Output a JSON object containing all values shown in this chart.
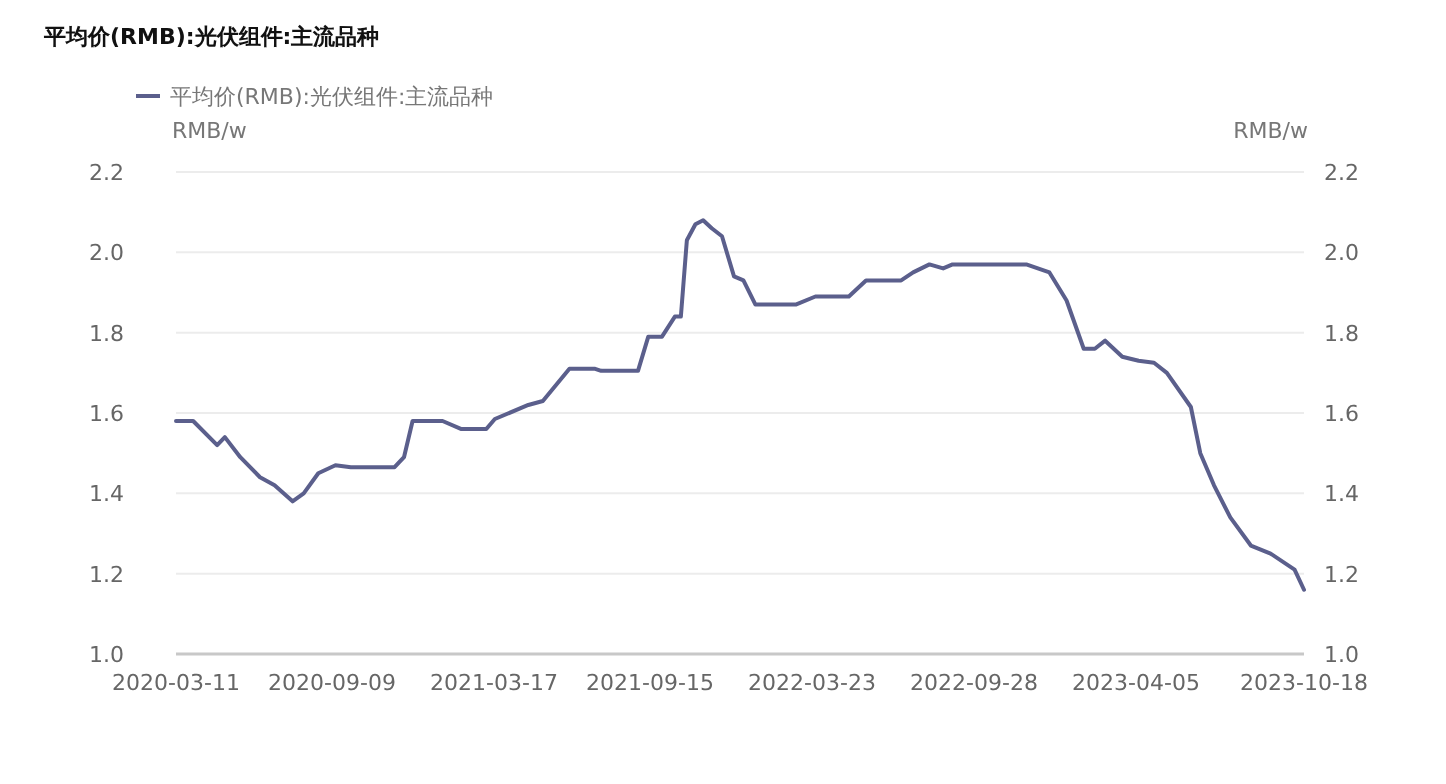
{
  "chart_data": {
    "type": "line",
    "title": "平均价(RMB):光伏组件:主流品种",
    "ylabel": "RMB/w",
    "y2label": "RMB/w",
    "x": [
      "2020-03-11",
      "2020-03-31",
      "2020-04-28",
      "2020-05-07",
      "2020-05-25",
      "2020-06-17",
      "2020-07-04",
      "2020-07-25",
      "2020-08-07",
      "2020-08-24",
      "2020-09-13",
      "2020-10-01",
      "2020-11-21",
      "2020-12-02",
      "2020-12-12",
      "2021-01-16",
      "2021-02-07",
      "2021-03-08",
      "2021-03-18",
      "2021-04-26",
      "2021-05-13",
      "2021-06-13",
      "2021-07-13",
      "2021-07-20",
      "2021-09-01",
      "2021-09-13",
      "2021-09-29",
      "2021-10-14",
      "2021-10-21",
      "2021-10-28",
      "2021-11-07",
      "2021-11-16",
      "2021-11-26",
      "2021-12-08",
      "2021-12-22",
      "2022-01-02",
      "2022-01-16",
      "2022-03-04",
      "2022-03-27",
      "2022-05-05",
      "2022-05-25",
      "2022-07-05",
      "2022-07-19",
      "2022-08-07",
      "2022-08-23",
      "2022-09-03",
      "2022-11-28",
      "2022-12-25",
      "2023-01-14",
      "2023-02-03",
      "2023-02-16",
      "2023-02-28",
      "2023-03-20",
      "2023-04-08",
      "2023-04-26",
      "2023-05-11",
      "2023-06-08",
      "2023-06-19",
      "2023-07-05",
      "2023-07-24",
      "2023-08-17",
      "2023-09-09",
      "2023-10-07",
      "2023-10-18"
    ],
    "series": [
      {
        "name": "平均价(RMB):光伏组件:主流品种",
        "color": "#5b5f8c",
        "values": [
          1.58,
          1.58,
          1.52,
          1.54,
          1.49,
          1.44,
          1.42,
          1.38,
          1.4,
          1.45,
          1.47,
          1.465,
          1.465,
          1.49,
          1.58,
          1.58,
          1.56,
          1.56,
          1.585,
          1.62,
          1.63,
          1.71,
          1.71,
          1.705,
          1.705,
          1.79,
          1.79,
          1.84,
          1.84,
          2.03,
          2.07,
          2.08,
          2.06,
          2.04,
          1.94,
          1.93,
          1.87,
          1.87,
          1.89,
          1.89,
          1.93,
          1.93,
          1.95,
          1.97,
          1.96,
          1.97,
          1.97,
          1.95,
          1.88,
          1.76,
          1.76,
          1.78,
          1.74,
          1.73,
          1.725,
          1.7,
          1.615,
          1.5,
          1.42,
          1.34,
          1.27,
          1.25,
          1.21,
          1.16
        ]
      }
    ],
    "xlim": [
      "2020-03-11",
      "2023-10-18"
    ],
    "xticks": [
      "2020-03-11",
      "2020-09-09",
      "2021-03-17",
      "2021-09-15",
      "2022-03-23",
      "2022-09-28",
      "2023-04-05",
      "2023-10-18"
    ],
    "ylim": [
      1.0,
      2.2
    ],
    "yticks": [
      {
        "value": 1.0,
        "label": "1.0"
      },
      1.2,
      1.4,
      1.6,
      1.8,
      {
        "value": 2.0,
        "label": "2.0"
      },
      2.2
    ],
    "y2lim": [
      1.0,
      2.2
    ],
    "y2ticks": [
      {
        "value": 1.0,
        "label": "1.0"
      },
      1.2,
      1.4,
      1.6,
      1.8,
      {
        "value": 2.0,
        "label": "2.0"
      },
      2.2
    ],
    "grid": "y",
    "legend": "top left",
    "marker": "none",
    "line_style": "solid"
  }
}
